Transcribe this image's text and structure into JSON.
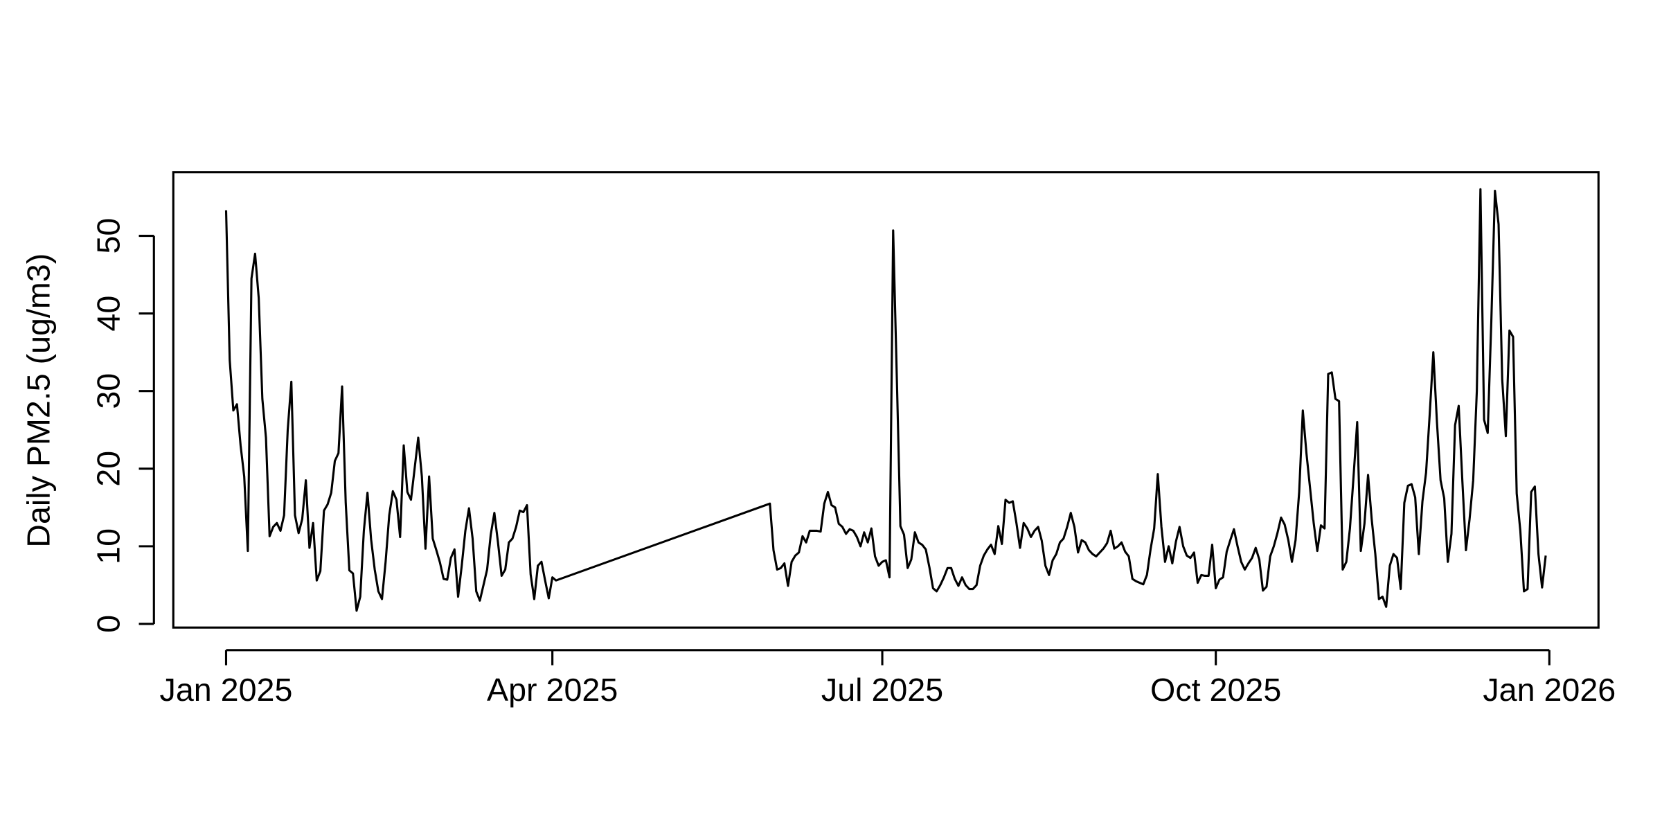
{
  "chart_data": {
    "type": "line",
    "ylabel": "Daily PM2.5 (ug/m3)",
    "color": "#000000",
    "xlim": [
      -14.56,
      378.56
    ],
    "ylim": [
      -0.47,
      58.2
    ],
    "yticks": [
      0,
      10,
      20,
      30,
      40,
      50
    ],
    "xticks": [
      {
        "value": 0,
        "label": "Jan 2025"
      },
      {
        "value": 90,
        "label": "Apr 2025"
      },
      {
        "value": 181,
        "label": "Jul 2025"
      },
      {
        "value": 273,
        "label": "Oct 2025"
      },
      {
        "value": 365,
        "label": "Jan 2026"
      }
    ],
    "x": [
      0,
      1,
      2,
      3,
      4,
      5,
      6,
      7,
      8,
      9,
      10,
      11,
      12,
      13,
      14,
      15,
      16,
      17,
      18,
      19,
      20,
      21,
      22,
      23,
      24,
      25,
      26,
      27,
      28,
      29,
      30,
      31,
      32,
      33,
      34,
      35,
      36,
      37,
      38,
      39,
      40,
      41,
      42,
      43,
      44,
      45,
      46,
      47,
      48,
      49,
      50,
      51,
      52,
      53,
      54,
      55,
      56,
      57,
      58,
      59,
      60,
      61,
      62,
      63,
      64,
      65,
      66,
      67,
      68,
      69,
      70,
      71,
      72,
      73,
      74,
      75,
      76,
      77,
      78,
      79,
      80,
      81,
      82,
      83,
      84,
      85,
      86,
      87,
      88,
      89,
      90,
      91,
      150,
      151,
      152,
      153,
      154,
      155,
      156,
      157,
      158,
      159,
      160,
      161,
      162,
      163,
      164,
      165,
      166,
      167,
      168,
      169,
      170,
      171,
      172,
      173,
      174,
      175,
      176,
      177,
      178,
      179,
      180,
      181,
      182,
      183,
      184,
      185,
      186,
      187,
      188,
      189,
      190,
      191,
      192,
      193,
      194,
      195,
      196,
      197,
      198,
      199,
      200,
      201,
      202,
      203,
      204,
      205,
      206,
      207,
      208,
      209,
      210,
      211,
      212,
      213,
      214,
      215,
      216,
      217,
      218,
      219,
      220,
      221,
      222,
      223,
      224,
      225,
      226,
      227,
      228,
      229,
      230,
      231,
      232,
      233,
      234,
      235,
      236,
      237,
      238,
      239,
      240,
      241,
      242,
      243,
      244,
      245,
      246,
      247,
      248,
      249,
      250,
      251,
      252,
      253,
      254,
      255,
      256,
      257,
      258,
      259,
      260,
      261,
      262,
      263,
      264,
      265,
      266,
      267,
      268,
      269,
      270,
      271,
      272,
      273,
      274,
      275,
      276,
      277,
      278,
      279,
      280,
      281,
      282,
      283,
      284,
      285,
      286,
      287,
      288,
      289,
      290,
      291,
      292,
      293,
      294,
      295,
      296,
      297,
      298,
      299,
      300,
      301,
      302,
      303,
      304,
      305,
      306,
      307,
      308,
      309,
      310,
      311,
      312,
      313,
      314,
      315,
      316,
      317,
      318,
      319,
      320,
      321,
      322,
      323,
      324,
      325,
      326,
      327,
      328,
      329,
      330,
      331,
      332,
      333,
      334,
      335,
      336,
      337,
      338,
      339,
      340,
      341,
      342,
      343,
      344,
      345,
      346,
      347,
      348,
      349,
      350,
      351,
      352,
      353,
      354,
      355,
      356,
      357,
      358,
      359,
      360,
      361,
      362,
      363,
      364
    ],
    "values": [
      53.3,
      34,
      27.5,
      28.3,
      23,
      19,
      9.4,
      44.5,
      47.7,
      42,
      29,
      24,
      11.3,
      12.5,
      13,
      12,
      14,
      25,
      31.2,
      14,
      11.7,
      13.5,
      18.5,
      9.8,
      13,
      5.6,
      6.8,
      14.6,
      15.4,
      16.9,
      21,
      22,
      30.6,
      15.6,
      6.9,
      6.5,
      1.7,
      3.5,
      12,
      16.9,
      10.9,
      7,
      4.2,
      3.2,
      8,
      14,
      17.1,
      16,
      11.2,
      23,
      17,
      16,
      20,
      24,
      19,
      9.7,
      19,
      11,
      9.5,
      7.9,
      5.8,
      5.7,
      8.5,
      9.6,
      3.5,
      7.5,
      12,
      14.9,
      11,
      4.2,
      3,
      5,
      7,
      11.5,
      14.3,
      10.5,
      6.2,
      7,
      10.5,
      11,
      12.5,
      14.6,
      14.4,
      15.3,
      6.4,
      3.2,
      7.5,
      8,
      5.6,
      3.3,
      6,
      5.6,
      15.5,
      9.5,
      7,
      7.2,
      7.8,
      4.9,
      8,
      8.8,
      9.2,
      11.3,
      10.5,
      12,
      12,
      12,
      11.9,
      15.5,
      17,
      15.3,
      15,
      12.9,
      12.5,
      11.6,
      12.2,
      12,
      11.2,
      10,
      11.8,
      10.5,
      12.3,
      8.7,
      7.5,
      8,
      8.2,
      6,
      50.7,
      32,
      12.6,
      11.5,
      7.2,
      8.3,
      11.8,
      10.5,
      10.2,
      9.6,
      7.3,
      4.6,
      4.2,
      5,
      6,
      7.2,
      7.2,
      5.8,
      4.9,
      6,
      5,
      4.5,
      4.5,
      5,
      7.5,
      8.8,
      9.6,
      10.2,
      9,
      12.6,
      10.3,
      16,
      15.6,
      15.8,
      13,
      9.8,
      13,
      12.3,
      11.2,
      12,
      12.5,
      10.7,
      7.5,
      6.3,
      8.2,
      9,
      10.5,
      11,
      12.5,
      14.3,
      12.5,
      9.2,
      10.8,
      10.5,
      9.5,
      9,
      8.7,
      9.2,
      9.7,
      10.4,
      12,
      9.7,
      10,
      10.5,
      9.3,
      8.7,
      5.8,
      5.5,
      5.3,
      5.1,
      6.3,
      9.6,
      12.3,
      19.3,
      12.5,
      8,
      10,
      7.8,
      10.6,
      12.5,
      10,
      8.8,
      8.5,
      9.2,
      5.3,
      6.3,
      6.2,
      6.2,
      10.2,
      4.6,
      5.7,
      6,
      9.3,
      10.8,
      12.2,
      10,
      8,
      7,
      7.8,
      8.5,
      9.8,
      8.3,
      4.3,
      4.8,
      8.7,
      10,
      11.7,
      13.7,
      12.8,
      10.8,
      8,
      10.8,
      17,
      27.5,
      22,
      17.5,
      13,
      9.4,
      12.7,
      12.3,
      32.2,
      32.4,
      29,
      28.7,
      7,
      8,
      12.3,
      19,
      26,
      9.4,
      12.9,
      19.2,
      13.5,
      9,
      3.2,
      3.5,
      2.2,
      7.5,
      9,
      8.5,
      4.5,
      15.6,
      17.8,
      18,
      16.3,
      9,
      15.8,
      19.5,
      27,
      35,
      26,
      18.5,
      16.2,
      8,
      11.6,
      25.6,
      28.1,
      18.5,
      9.5,
      13.5,
      18.5,
      30,
      56,
      26.3,
      24.6,
      39,
      55.8,
      51.5,
      31.5,
      24.2,
      37.8,
      37,
      16.8,
      12,
      4.2,
      4.5,
      17,
      17.7,
      9,
      4.7,
      8.8
    ]
  }
}
